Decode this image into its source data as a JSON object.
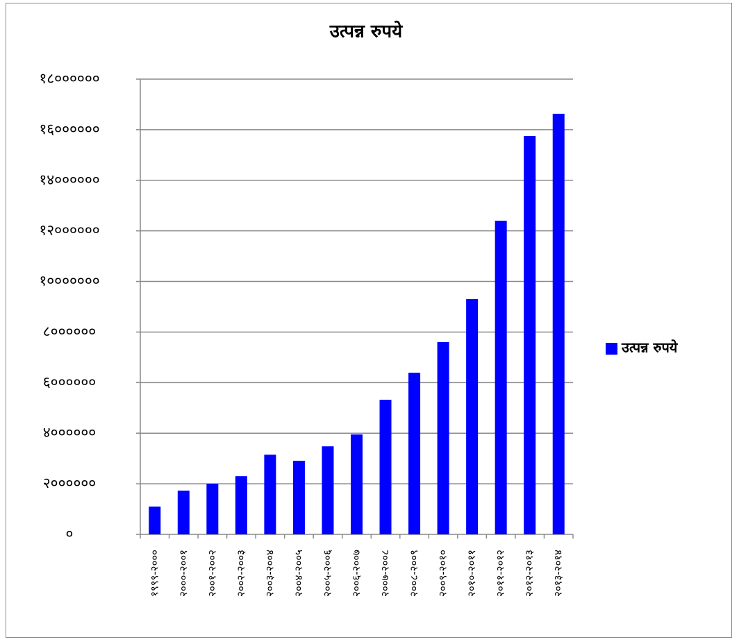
{
  "chart_data": {
    "type": "bar",
    "title": "उत्पन्न रुपये",
    "categories": [
      "१९९९-२०००",
      "२०००-२००१",
      "२००१-२००२",
      "२००२-२००३",
      "२००३-२००४",
      "२००४-२००५",
      "२००५-२००६",
      "२००६-२००७",
      "२००७-२००८",
      "२००८-२००९",
      "२००९-२०१०",
      "२०१०-२०११",
      "२०११-२०१२",
      "२०१२-२०१३",
      "२०१३-२०१४"
    ],
    "series": [
      {
        "name": "उत्पन्न रुपये",
        "color": "#0000ff",
        "values": [
          1100000,
          1730000,
          2000000,
          2300000,
          3150000,
          2910000,
          3480000,
          3950000,
          5320000,
          6390000,
          7600000,
          9300000,
          12400000,
          15750000,
          16630000
        ]
      }
    ],
    "ylim": [
      0,
      18000000
    ],
    "yticks": [
      {
        "value": 0,
        "label": "०"
      },
      {
        "value": 2000000,
        "label": "२००००००"
      },
      {
        "value": 4000000,
        "label": "४००००००"
      },
      {
        "value": 6000000,
        "label": "६००००००"
      },
      {
        "value": 8000000,
        "label": "८००००००"
      },
      {
        "value": 10000000,
        "label": "१०००००००"
      },
      {
        "value": 12000000,
        "label": "१२००००००"
      },
      {
        "value": 14000000,
        "label": "१४००००००"
      },
      {
        "value": 16000000,
        "label": "१६००००००"
      },
      {
        "value": 18000000,
        "label": "१८००००००"
      }
    ],
    "grid": true,
    "legend": "right"
  }
}
